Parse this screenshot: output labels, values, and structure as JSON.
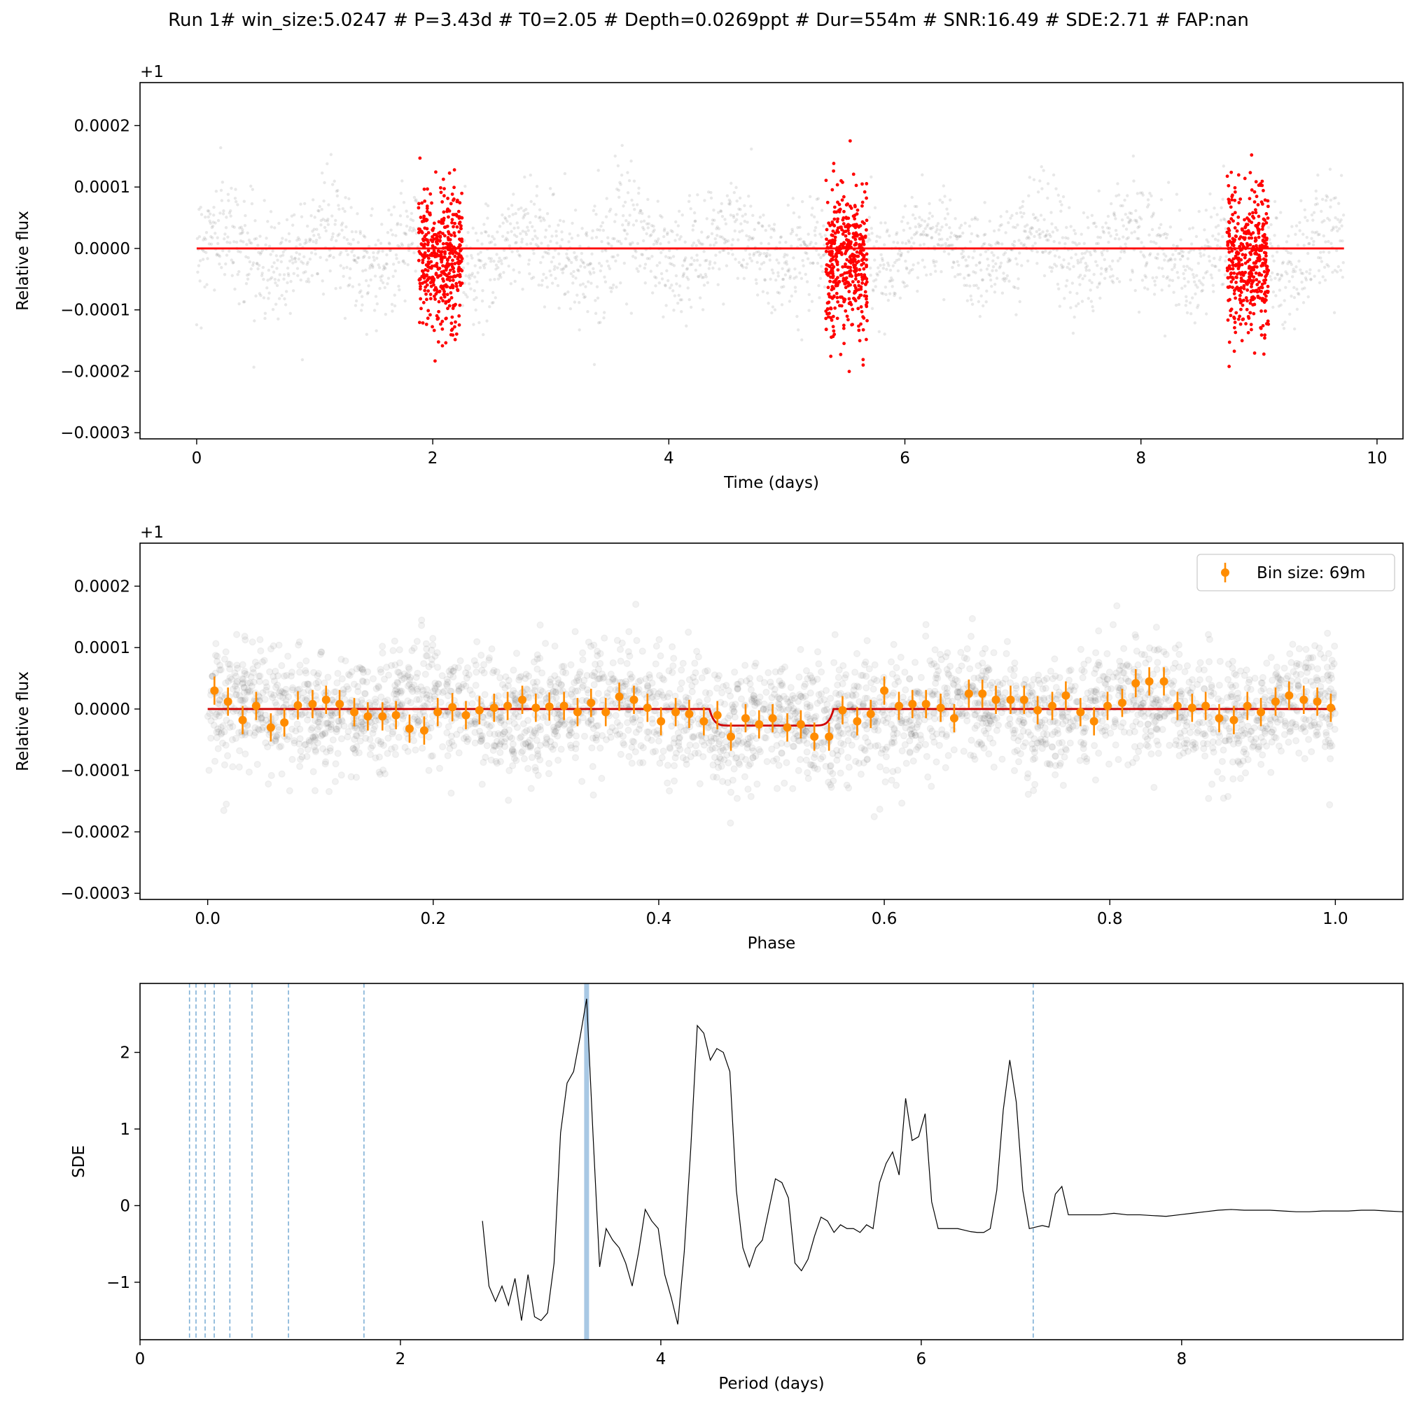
{
  "title": "Run 1# win_size:5.0247 # P=3.43d # T0=2.05 # Depth=0.0269ppt # Dur=554m # SNR:16.49 # SDE:2.71 # FAP:nan",
  "chart_data": [
    {
      "type": "scatter",
      "name": "light-curve",
      "xlabel": "Time (days)",
      "ylabel": "Relative flux",
      "offset_label": "+1",
      "xlim": [
        -0.48,
        10.22
      ],
      "ylim": [
        -0.00031,
        0.00027
      ],
      "xticks": [
        0,
        2,
        4,
        6,
        8,
        10
      ],
      "xtick_labels": [
        "0",
        "2",
        "4",
        "6",
        "8",
        "10"
      ],
      "yticks": [
        -0.0003,
        -0.0002,
        -0.0001,
        0.0,
        0.0001,
        0.0002
      ],
      "ytick_labels": [
        "−0.0003",
        "−0.0002",
        "−0.0001",
        "0.0000",
        "0.0001",
        "0.0002"
      ],
      "time_range": [
        0.0,
        9.72
      ],
      "in_transit_windows": [
        [
          1.88,
          2.25
        ],
        [
          5.33,
          5.68
        ],
        [
          8.73,
          9.08
        ]
      ],
      "model_line": {
        "x": [
          0.0,
          9.72
        ],
        "y": [
          0.0,
          0.0
        ],
        "color": "#ff0000"
      },
      "colors": {
        "background_points": "#000000",
        "in_transit_points": "#ff0000"
      }
    },
    {
      "type": "scatter",
      "name": "phase-folded",
      "xlabel": "Phase",
      "ylabel": "Relative flux",
      "offset_label": "+1",
      "xlim": [
        -0.06,
        1.06
      ],
      "ylim": [
        -0.00031,
        0.00027
      ],
      "xticks": [
        0.0,
        0.2,
        0.4,
        0.6,
        0.8,
        1.0
      ],
      "xtick_labels": [
        "0.0",
        "0.2",
        "0.4",
        "0.6",
        "0.8",
        "1.0"
      ],
      "yticks": [
        -0.0003,
        -0.0002,
        -0.0001,
        0.0,
        0.0001,
        0.0002
      ],
      "ytick_labels": [
        "−0.0003",
        "−0.0002",
        "−0.0001",
        "0.0000",
        "0.0001",
        "0.0002"
      ],
      "legend": {
        "label": "Bin size: 69m",
        "position": "upper right"
      },
      "model": {
        "transit_start": 0.445,
        "transit_end": 0.555,
        "depth": -2.7e-05,
        "color": "#d00000"
      },
      "binned": {
        "color": "#ff8c00",
        "x": [
          0.006,
          0.018,
          0.031,
          0.043,
          0.056,
          0.068,
          0.08,
          0.093,
          0.105,
          0.117,
          0.13,
          0.142,
          0.155,
          0.167,
          0.179,
          0.192,
          0.204,
          0.217,
          0.229,
          0.241,
          0.254,
          0.266,
          0.279,
          0.291,
          0.303,
          0.316,
          0.328,
          0.34,
          0.353,
          0.365,
          0.378,
          0.39,
          0.402,
          0.415,
          0.427,
          0.44,
          0.452,
          0.464,
          0.477,
          0.489,
          0.501,
          0.514,
          0.526,
          0.538,
          0.551,
          0.563,
          0.576,
          0.588,
          0.6,
          0.613,
          0.625,
          0.637,
          0.65,
          0.662,
          0.675,
          0.687,
          0.699,
          0.712,
          0.724,
          0.736,
          0.749,
          0.761,
          0.774,
          0.786,
          0.798,
          0.811,
          0.823,
          0.835,
          0.848,
          0.86,
          0.873,
          0.885,
          0.897,
          0.91,
          0.922,
          0.934,
          0.947,
          0.959,
          0.972,
          0.984,
          0.996
        ],
        "y": [
          3e-05,
          1.2e-05,
          -1.8e-05,
          5e-06,
          -3e-05,
          -2.2e-05,
          6e-06,
          8e-06,
          1.5e-05,
          8e-06,
          -5e-06,
          -1.2e-05,
          -1.2e-05,
          -1e-05,
          -3.2e-05,
          -3.5e-05,
          -5e-06,
          3e-06,
          -1e-05,
          -2e-06,
          2e-06,
          5e-06,
          1.5e-05,
          2e-06,
          4e-06,
          5e-06,
          -5e-06,
          1e-05,
          -5e-06,
          2e-05,
          1.5e-05,
          2e-06,
          -2e-05,
          -5e-06,
          -8e-06,
          -2e-05,
          -1e-05,
          -4.5e-05,
          -1.5e-05,
          -2.5e-05,
          -1.5e-05,
          -3e-05,
          -2.5e-05,
          -4.5e-05,
          -4.5e-05,
          -2e-06,
          -2e-05,
          -8e-06,
          3e-05,
          5e-06,
          8e-06,
          8e-06,
          2e-06,
          -1.5e-05,
          2.5e-05,
          2.5e-05,
          1.5e-05,
          1.5e-05,
          1.5e-05,
          -2e-06,
          5e-06,
          2.2e-05,
          -5e-06,
          -2e-05,
          5e-06,
          1e-05,
          4.2e-05,
          4.5e-05,
          4.5e-05,
          5e-06,
          2e-06,
          5e-06,
          -1.5e-05,
          -1.8e-05,
          5e-06,
          -5e-06,
          1.2e-05,
          2.2e-05,
          1.5e-05,
          1.2e-05,
          2e-06
        ],
        "yerr": 2.3e-05
      },
      "colors": {
        "background_points": "#000000"
      }
    },
    {
      "type": "line",
      "name": "periodogram",
      "xlabel": "Period (days)",
      "ylabel": "SDE",
      "xlim": [
        0.0,
        9.7
      ],
      "ylim": [
        -1.75,
        2.9
      ],
      "xticks": [
        0,
        2,
        4,
        6,
        8
      ],
      "xtick_labels": [
        "0",
        "2",
        "4",
        "6",
        "8"
      ],
      "yticks": [
        -1,
        0,
        1,
        2
      ],
      "ytick_labels": [
        "−1",
        "0",
        "1",
        "2"
      ],
      "best_period": 3.43,
      "alias_lines": [
        0.38,
        0.43,
        0.5,
        0.57,
        0.69,
        0.86,
        1.14,
        1.72,
        6.86
      ],
      "x": [
        2.63,
        2.68,
        2.73,
        2.78,
        2.83,
        2.88,
        2.93,
        2.98,
        3.03,
        3.08,
        3.13,
        3.18,
        3.23,
        3.28,
        3.33,
        3.38,
        3.43,
        3.48,
        3.53,
        3.58,
        3.63,
        3.68,
        3.73,
        3.78,
        3.83,
        3.88,
        3.93,
        3.98,
        4.03,
        4.08,
        4.13,
        4.18,
        4.23,
        4.28,
        4.33,
        4.38,
        4.43,
        4.48,
        4.53,
        4.58,
        4.63,
        4.68,
        4.73,
        4.78,
        4.83,
        4.88,
        4.93,
        4.98,
        5.03,
        5.08,
        5.13,
        5.18,
        5.23,
        5.28,
        5.33,
        5.38,
        5.43,
        5.48,
        5.53,
        5.58,
        5.63,
        5.68,
        5.73,
        5.78,
        5.83,
        5.88,
        5.93,
        5.98,
        6.03,
        6.08,
        6.13,
        6.18,
        6.23,
        6.28,
        6.33,
        6.38,
        6.43,
        6.48,
        6.53,
        6.58,
        6.63,
        6.68,
        6.73,
        6.78,
        6.83,
        6.88,
        6.93,
        6.98,
        7.03,
        7.08,
        7.13,
        7.18,
        7.28,
        7.38,
        7.48,
        7.58,
        7.68,
        7.78,
        7.88,
        7.98,
        8.08,
        8.18,
        8.28,
        8.38,
        8.48,
        8.58,
        8.68,
        8.78,
        8.88,
        8.98,
        9.08,
        9.18,
        9.28,
        9.38,
        9.48,
        9.58,
        9.7
      ],
      "y": [
        -0.2,
        -1.05,
        -1.25,
        -1.05,
        -1.3,
        -0.95,
        -1.5,
        -0.9,
        -1.45,
        -1.5,
        -1.4,
        -0.75,
        0.95,
        1.6,
        1.75,
        2.2,
        2.7,
        0.9,
        -0.8,
        -0.3,
        -0.45,
        -0.55,
        -0.75,
        -1.05,
        -0.6,
        -0.05,
        -0.2,
        -0.3,
        -0.9,
        -1.2,
        -1.55,
        -0.6,
        0.75,
        2.35,
        2.25,
        1.9,
        2.05,
        2.0,
        1.75,
        0.2,
        -0.55,
        -0.8,
        -0.55,
        -0.45,
        -0.05,
        0.35,
        0.3,
        0.1,
        -0.75,
        -0.85,
        -0.7,
        -0.4,
        -0.15,
        -0.2,
        -0.35,
        -0.25,
        -0.3,
        -0.3,
        -0.35,
        -0.25,
        -0.3,
        0.3,
        0.55,
        0.7,
        0.4,
        1.4,
        0.85,
        0.9,
        1.2,
        0.05,
        -0.3,
        -0.3,
        -0.3,
        -0.3,
        -0.32,
        -0.34,
        -0.35,
        -0.35,
        -0.3,
        0.2,
        1.25,
        1.9,
        1.35,
        0.2,
        -0.3,
        -0.28,
        -0.26,
        -0.28,
        0.15,
        0.25,
        -0.12,
        -0.12,
        -0.12,
        -0.12,
        -0.1,
        -0.12,
        -0.12,
        -0.13,
        -0.14,
        -0.12,
        -0.1,
        -0.08,
        -0.06,
        -0.05,
        -0.06,
        -0.06,
        -0.06,
        -0.07,
        -0.08,
        -0.08,
        -0.07,
        -0.07,
        -0.07,
        -0.06,
        -0.06,
        -0.07,
        -0.08
      ],
      "colors": {
        "line": "#000000",
        "alias": "#7fb0d6",
        "best": "#a8c8e4"
      }
    }
  ]
}
